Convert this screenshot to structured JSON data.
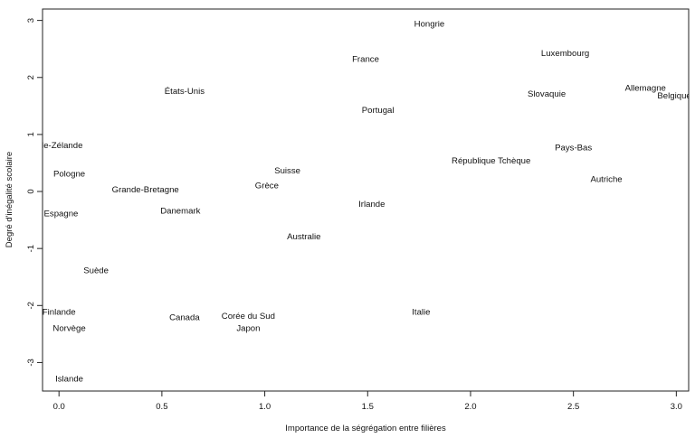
{
  "chart_data": {
    "type": "scatter",
    "title": "",
    "xlabel": "Importance de la ségrégation entre filières",
    "ylabel": "Degré d'inégalité scolaire",
    "xlim": [
      -0.08,
      3.06
    ],
    "ylim": [
      -3.5,
      3.2
    ],
    "xticks": [
      "0.0",
      "0.5",
      "1.0",
      "1.5",
      "2.0",
      "2.5",
      "3.0"
    ],
    "xtick_values": [
      0,
      0.5,
      1,
      1.5,
      2,
      2.5,
      3
    ],
    "yticks": [
      "-3",
      "-2",
      "-1",
      "0",
      "1",
      "2",
      "3"
    ],
    "ytick_values": [
      -3,
      -2,
      -1,
      0,
      1,
      2,
      3
    ],
    "grid": false,
    "marker": "text-label",
    "points": [
      {
        "label": "Hongrie",
        "x": 1.8,
        "y": 2.95
      },
      {
        "label": "Luxembourg",
        "x": 2.46,
        "y": 2.43
      },
      {
        "label": "France",
        "x": 1.49,
        "y": 2.33
      },
      {
        "label": "Allemagne",
        "x": 2.85,
        "y": 1.82
      },
      {
        "label": "Belgique",
        "x": 2.99,
        "y": 1.69
      },
      {
        "label": "Slovaquie",
        "x": 2.37,
        "y": 1.72
      },
      {
        "label": "États-Unis",
        "x": 0.61,
        "y": 1.77
      },
      {
        "label": "Portugal",
        "x": 1.55,
        "y": 1.43
      },
      {
        "label": "Nouvelle-Zélande",
        "x": -0.05,
        "y": 0.82
      },
      {
        "label": "Pays-Bas",
        "x": 2.5,
        "y": 0.78
      },
      {
        "label": "République Tchèque",
        "x": 2.1,
        "y": 0.55
      },
      {
        "label": "Pologne",
        "x": 0.05,
        "y": 0.32
      },
      {
        "label": "Suisse",
        "x": 1.11,
        "y": 0.37
      },
      {
        "label": "Autriche",
        "x": 2.66,
        "y": 0.22
      },
      {
        "label": "Grèce",
        "x": 1.01,
        "y": 0.11
      },
      {
        "label": "Grande-Bretagne",
        "x": 0.42,
        "y": 0.04
      },
      {
        "label": "Irlande",
        "x": 1.52,
        "y": -0.21
      },
      {
        "label": "Danemark",
        "x": 0.59,
        "y": -0.33
      },
      {
        "label": "Espagne",
        "x": 0.01,
        "y": -0.38
      },
      {
        "label": "Australie",
        "x": 1.19,
        "y": -0.78
      },
      {
        "label": "Suède",
        "x": 0.18,
        "y": -1.38
      },
      {
        "label": "Finlande",
        "x": 0.0,
        "y": -2.11
      },
      {
        "label": "Italie",
        "x": 1.76,
        "y": -2.11
      },
      {
        "label": "Canada",
        "x": 0.61,
        "y": -2.2
      },
      {
        "label": "Corée du Sud",
        "x": 0.92,
        "y": -2.18
      },
      {
        "label": "Norvège",
        "x": 0.05,
        "y": -2.39
      },
      {
        "label": "Japon",
        "x": 0.92,
        "y": -2.39
      },
      {
        "label": "Islande",
        "x": 0.05,
        "y": -3.28
      }
    ]
  }
}
